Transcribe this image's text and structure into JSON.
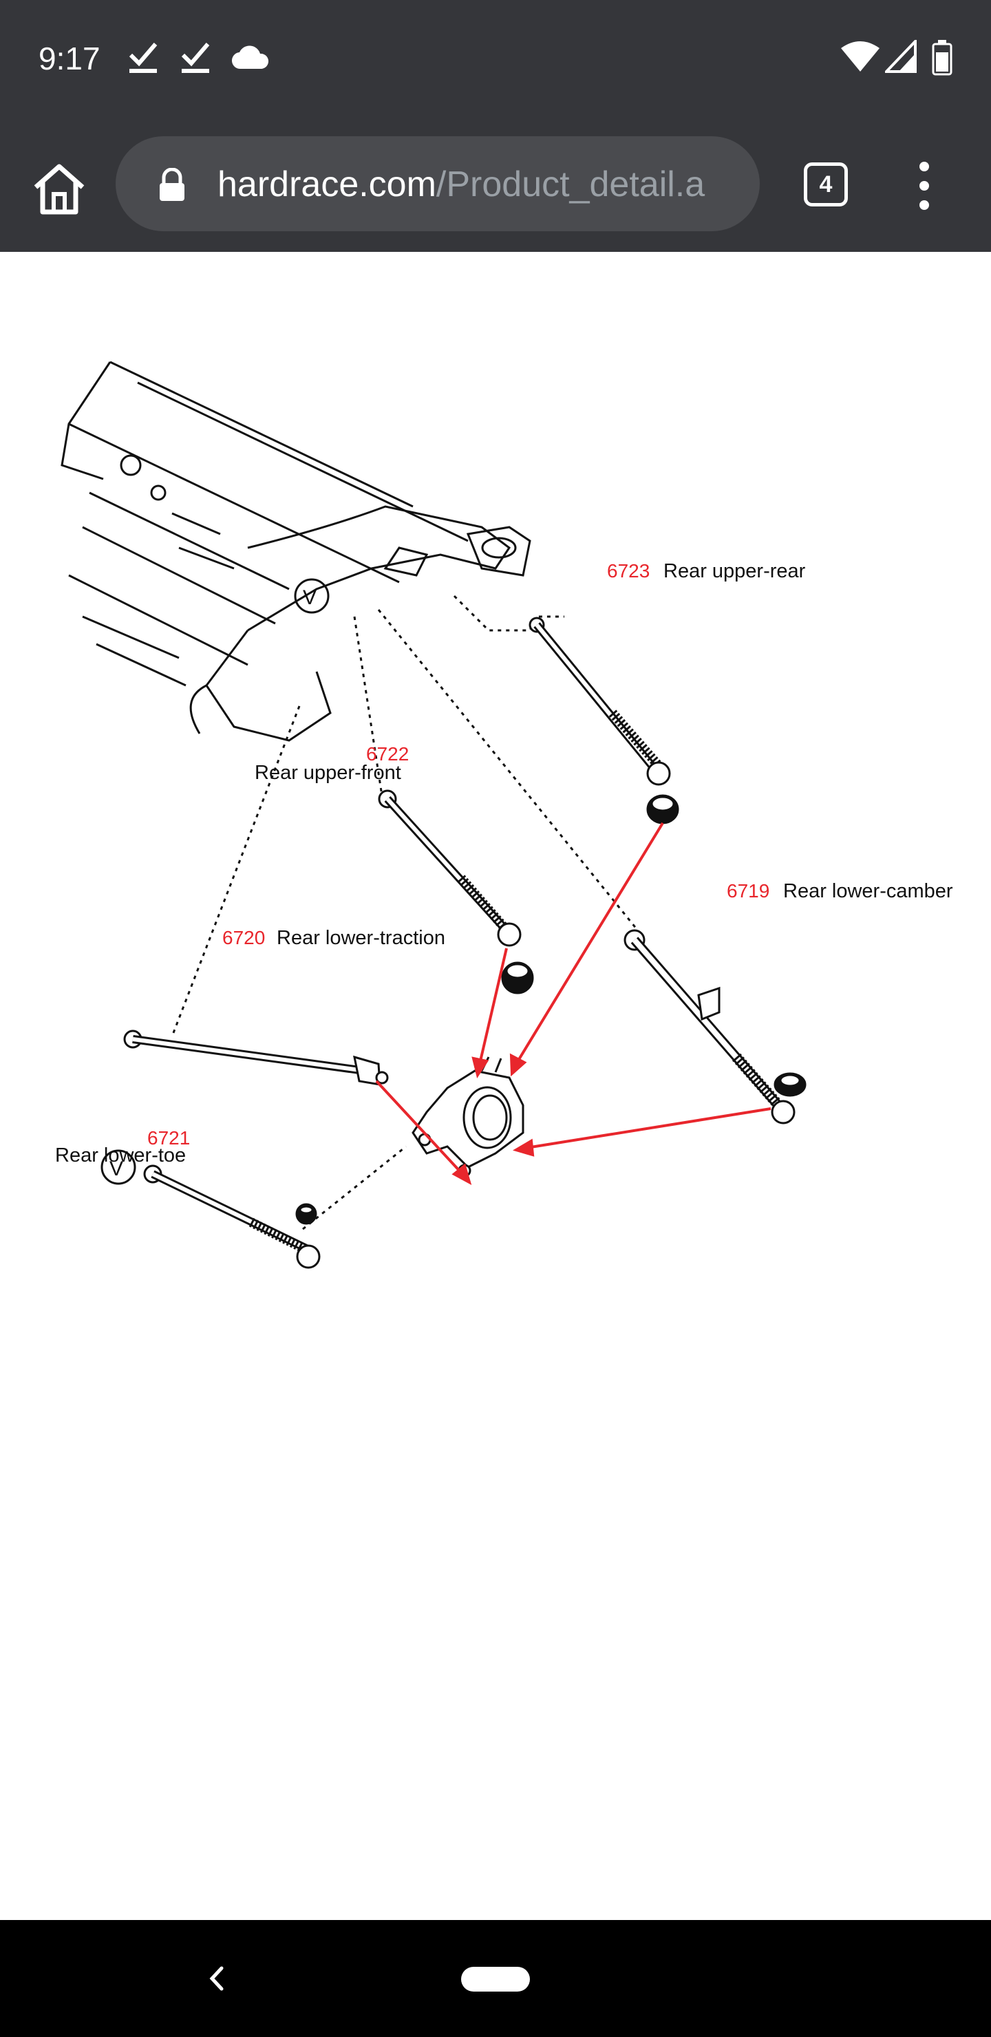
{
  "status_bar": {
    "time": "9:17",
    "left_icons": [
      "check-download-icon",
      "check-download-icon",
      "cloud-icon"
    ],
    "right_icons": [
      "wifi-icon",
      "signal-icon",
      "battery-icon"
    ]
  },
  "browser": {
    "url_host": "hardrace.com",
    "url_path": "/Product_detail.a",
    "tab_count": "4",
    "icons": [
      "home-icon",
      "lock-icon",
      "tab-switcher-icon",
      "more-vert-icon"
    ]
  },
  "diagram": {
    "labels": [
      {
        "num": "6723",
        "name": "Rear upper-rear"
      },
      {
        "num": "6722",
        "name": "Rear upper-front"
      },
      {
        "num": "6719",
        "name": "Rear lower-camber"
      },
      {
        "num": "6720",
        "name": "Rear lower-traction"
      },
      {
        "num": "6721",
        "name": "Rear lower-toe"
      }
    ],
    "marker": "V",
    "accent_color": "#e8262c"
  },
  "nav_bar": {
    "icons": [
      "back-icon",
      "home-pill-icon"
    ]
  }
}
